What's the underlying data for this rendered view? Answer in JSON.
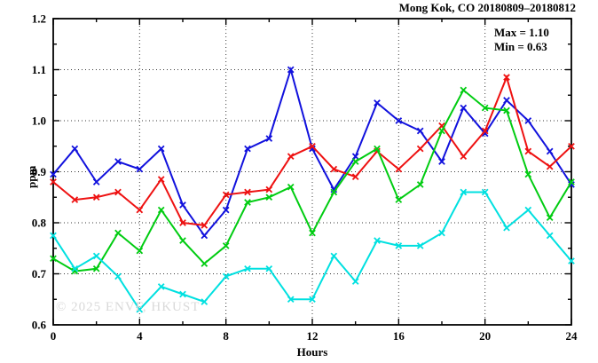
{
  "title": "Mong Kok, CO 20180809–20180812",
  "watermark": "© 2025 ENVF, HKUST",
  "chart_data": {
    "type": "line",
    "title": "Mong Kok, CO 20180809–20180812",
    "xlabel": "Hours",
    "ylabel": "ppm",
    "xlim": [
      0,
      24
    ],
    "ylim": [
      0.6,
      1.2
    ],
    "legend": "none",
    "grid": {
      "style": "dotted",
      "x": [
        4,
        8,
        12,
        16,
        20
      ],
      "y": [
        0.7,
        0.8,
        0.9,
        1.0,
        1.1
      ]
    },
    "xticks_major": [
      0,
      4,
      8,
      12,
      16,
      20,
      24
    ],
    "xtick_labels": [
      "0",
      "4",
      "8",
      "12",
      "16",
      "20",
      "24"
    ],
    "xticks_minor": [
      2,
      6,
      10,
      14,
      18,
      22
    ],
    "yticks_major": [
      0.6,
      0.7,
      0.8,
      0.9,
      1.0,
      1.1,
      1.2
    ],
    "ytick_labels": [
      "0.6",
      "0.7",
      "0.8",
      "0.9",
      "1.0",
      "1.1",
      "1.2"
    ],
    "yticks_minor": [
      0.65,
      0.75,
      0.85,
      0.95,
      1.05,
      1.15
    ],
    "x": [
      0,
      1,
      2,
      3,
      4,
      5,
      6,
      7,
      8,
      9,
      10,
      11,
      12,
      13,
      14,
      15,
      16,
      17,
      18,
      19,
      20,
      21,
      22,
      23,
      24
    ],
    "series": [
      {
        "name": "blue-line",
        "color": "#1111dd",
        "marker": "x",
        "values": [
          0.895,
          0.945,
          0.88,
          0.92,
          0.905,
          0.945,
          0.835,
          0.775,
          0.825,
          0.945,
          0.965,
          1.1,
          0.945,
          0.865,
          0.93,
          1.035,
          1.0,
          0.98,
          0.92,
          1.025,
          0.975,
          1.04,
          1.0,
          0.94,
          0.875
        ]
      },
      {
        "name": "red-line",
        "color": "#ee1111",
        "marker": "x",
        "values": [
          0.88,
          0.845,
          0.85,
          0.86,
          0.825,
          0.885,
          0.8,
          0.795,
          0.855,
          0.86,
          0.865,
          0.93,
          0.95,
          0.905,
          0.89,
          0.94,
          0.905,
          0.945,
          0.99,
          0.93,
          0.98,
          1.085,
          0.94,
          0.91,
          0.95
        ]
      },
      {
        "name": "green-line",
        "color": "#00cc11",
        "marker": "x",
        "values": [
          0.73,
          0.705,
          0.71,
          0.78,
          0.745,
          0.825,
          0.765,
          0.72,
          0.755,
          0.84,
          0.85,
          0.87,
          0.78,
          0.86,
          0.92,
          0.945,
          0.845,
          0.875,
          0.98,
          1.06,
          1.025,
          1.02,
          0.895,
          0.81,
          0.88
        ]
      },
      {
        "name": "cyan-line",
        "color": "#00e0e0",
        "marker": "x",
        "values": [
          0.775,
          0.71,
          0.735,
          0.695,
          0.63,
          0.675,
          0.66,
          0.645,
          0.695,
          0.71,
          0.71,
          0.65,
          0.65,
          0.735,
          0.685,
          0.765,
          0.755,
          0.755,
          0.78,
          0.86,
          0.86,
          0.79,
          0.825,
          0.775,
          0.725
        ]
      }
    ],
    "annotations": [
      "Max = 1.10",
      "Min = 0.63"
    ],
    "stats": {
      "max": 1.1,
      "min": 0.63
    }
  }
}
